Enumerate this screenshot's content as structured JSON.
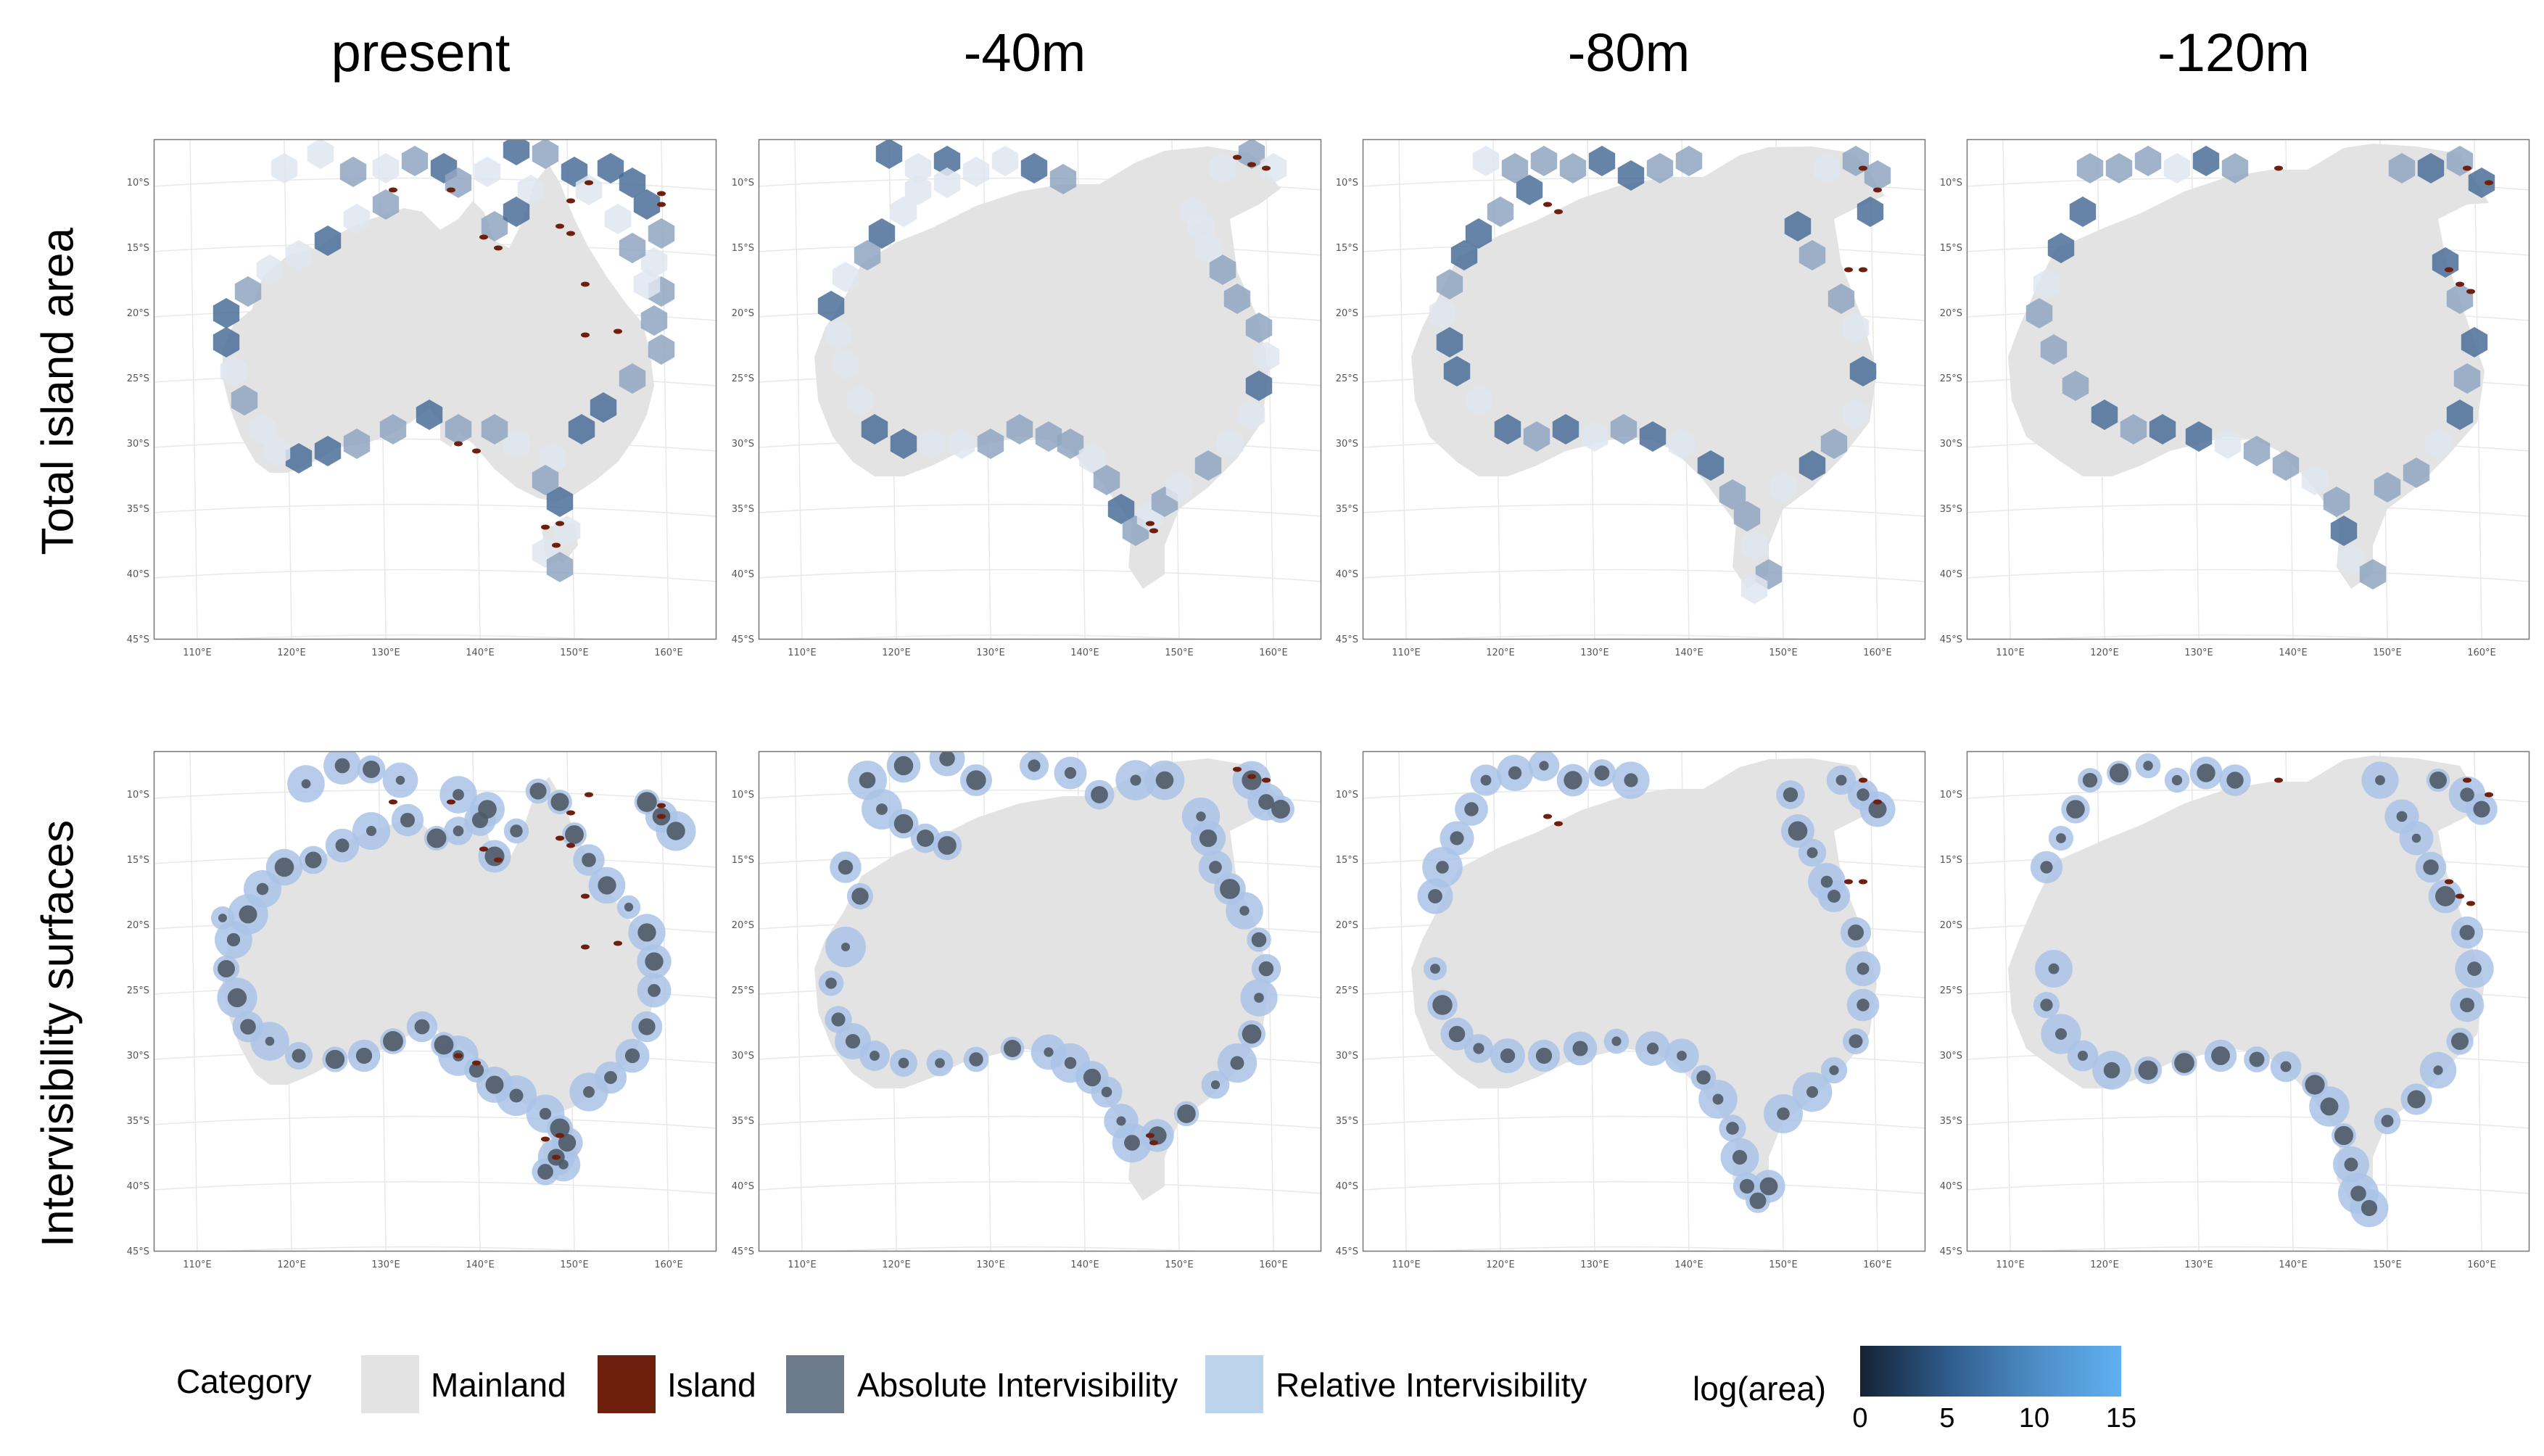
{
  "columns": [
    "present",
    "-40m",
    "-80m",
    "-120m"
  ],
  "rows": [
    "Total island area",
    "Intervisibility surfaces"
  ],
  "lat_ticks": [
    "10°S",
    "15°S",
    "20°S",
    "25°S",
    "30°S",
    "35°S",
    "40°S",
    "45°S"
  ],
  "lon_ticks": [
    "110°E",
    "120°E",
    "130°E",
    "140°E",
    "150°E",
    "160°E"
  ],
  "legend": {
    "category_title": "Category",
    "categories": [
      {
        "label": "Mainland",
        "color": "#e3e3e3"
      },
      {
        "label": "Island",
        "color": "#6f1f0e"
      },
      {
        "label": "Absolute Intervisibility",
        "color": "#6b7b8c"
      },
      {
        "label": "Relative Intervisibility",
        "color": "#bcd3ee"
      }
    ],
    "gradient_title": "log(area)",
    "gradient_ticks": [
      "0",
      "5",
      "10",
      "15"
    ]
  },
  "colors": {
    "mainland": "#e3e3e3",
    "hex_light": "#dfe6ef",
    "hex_mid": "#8fa6c1",
    "hex_dark": "#4a6f99",
    "island": "#6f1f0e",
    "absolute": "#4f5a66",
    "relative": "#a9c3e6",
    "grid": "#e8e8e8"
  }
}
